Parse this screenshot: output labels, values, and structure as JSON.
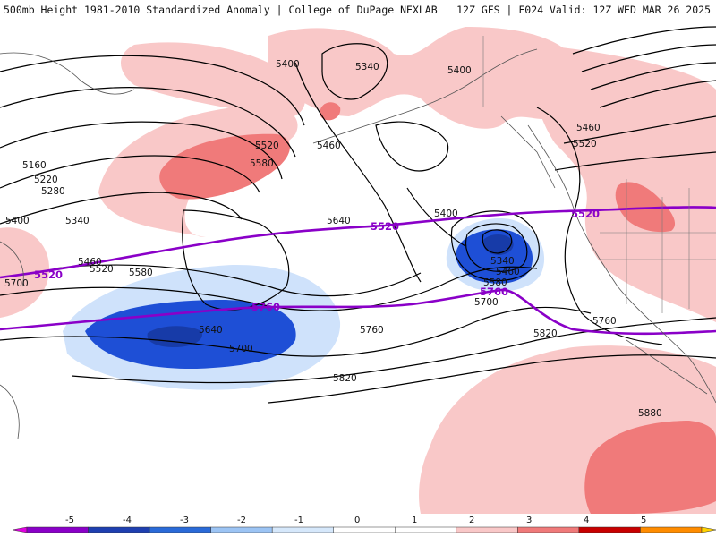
{
  "header": {
    "title_left": "500mb Height 1981-2010 Standardized Anomaly | College of DuPage NEXLAB",
    "title_right": "12Z GFS | F024 Valid: 12Z WED MAR 26 2025"
  },
  "map": {
    "height_labels": [
      "5400",
      "5340",
      "5400",
      "5160",
      "5220",
      "5280",
      "5400",
      "5340",
      "5460",
      "5520",
      "5580",
      "5520",
      "5580",
      "5460",
      "5640",
      "5400",
      "5340",
      "5460",
      "5580",
      "5700",
      "5640",
      "5700",
      "5760",
      "5820",
      "5760",
      "5820",
      "5880",
      "5700",
      "5460",
      "5520"
    ],
    "highlight_labels": [
      "5520",
      "5520",
      "5760",
      "5760",
      "5520"
    ],
    "colors": {
      "neg2": "#1e4fd6",
      "neg1": "#7aa6f0",
      "neg05": "#cfe2fb",
      "pos05": "#f9c8c8",
      "pos1": "#f07a7a",
      "purple": "#8a00c8"
    }
  },
  "legend": {
    "ticks": [
      "-5",
      "-4",
      "-3",
      "-2",
      "-1",
      "0",
      "1",
      "2",
      "3",
      "4",
      "5"
    ],
    "colors": [
      "#e000e0",
      "#8a00c8",
      "#1e3fb0",
      "#2a6ad8",
      "#9cc4f4",
      "#d6e8fb",
      "#ffffff",
      "#ffffff",
      "#f9c8c8",
      "#f07a7a",
      "#c80000",
      "#ff8c00",
      "#ffd200"
    ]
  }
}
